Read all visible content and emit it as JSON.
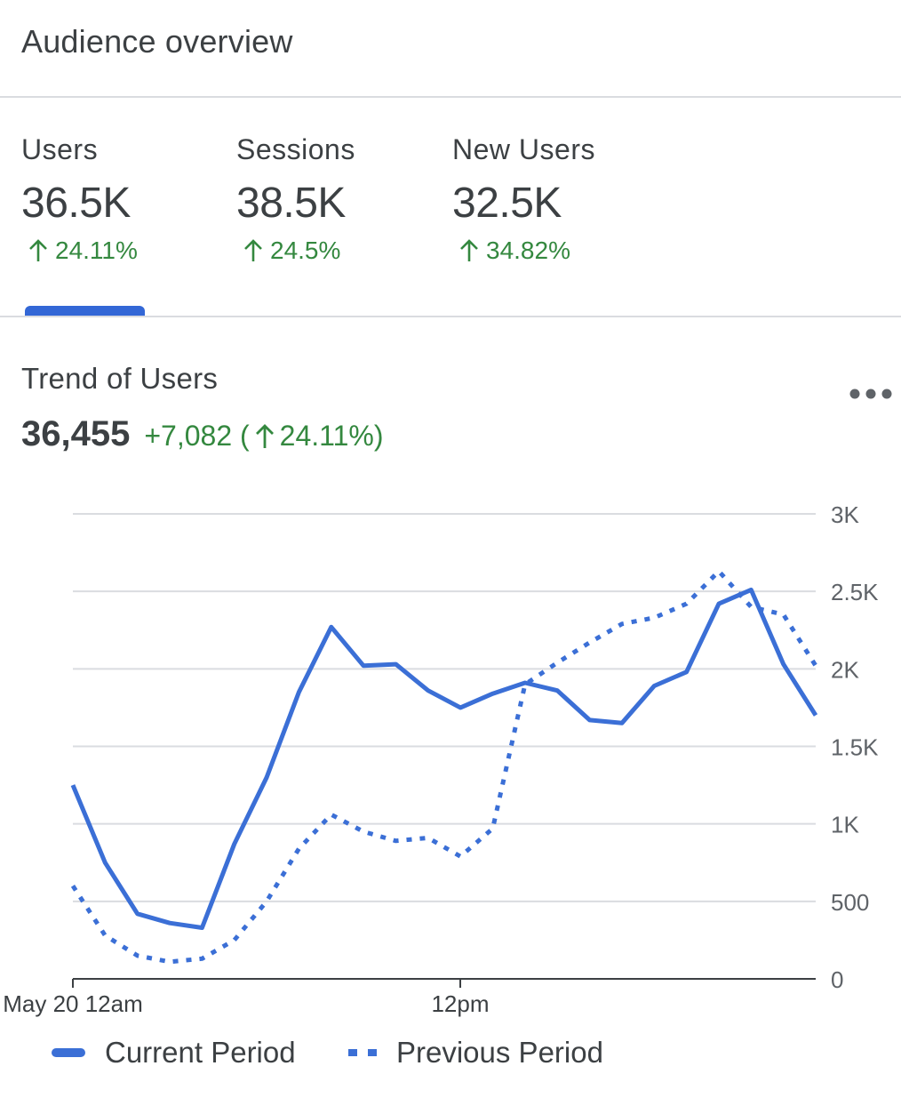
{
  "header": {
    "title": "Audience overview"
  },
  "metrics": [
    {
      "label": "Users",
      "value": "36.5K",
      "change": "24.11%"
    },
    {
      "label": "Sessions",
      "value": "38.5K",
      "change": "24.5%"
    },
    {
      "label": "New Users",
      "value": "32.5K",
      "change": "34.82%"
    }
  ],
  "active_tab": "Users",
  "trend": {
    "title": "Trend of Users",
    "total": "36,455",
    "delta_prefix": "+7,082 (",
    "delta_pct": "24.11%)",
    "menu_icon": "more-horizontal-icon"
  },
  "colors": {
    "accent": "#3b6fd6",
    "positive": "#34883f",
    "text": "#3c4043",
    "grid": "#dadce0"
  },
  "chart_data": {
    "type": "line",
    "x_tick_labels": [
      "May 20 12am",
      "12pm"
    ],
    "y_tick_labels": [
      "0",
      "500",
      "1K",
      "1.5K",
      "2K",
      "2.5K",
      "3K"
    ],
    "ylim": [
      0,
      3000
    ],
    "grid": true,
    "legend_placement": "bottom",
    "series": [
      {
        "name": "Current Period",
        "style": "solid",
        "values": [
          1250,
          750,
          420,
          360,
          330,
          870,
          1300,
          1850,
          2270,
          2020,
          2030,
          1860,
          1750,
          1840,
          1910,
          1860,
          1670,
          1650,
          1890,
          1980,
          2420,
          2510,
          2030,
          1700
        ]
      },
      {
        "name": "Previous Period",
        "style": "dotted",
        "values": [
          600,
          280,
          150,
          110,
          130,
          250,
          500,
          840,
          1060,
          950,
          890,
          910,
          790,
          970,
          1900,
          2040,
          2170,
          2290,
          2330,
          2420,
          2630,
          2400,
          2350,
          2020
        ]
      }
    ]
  }
}
